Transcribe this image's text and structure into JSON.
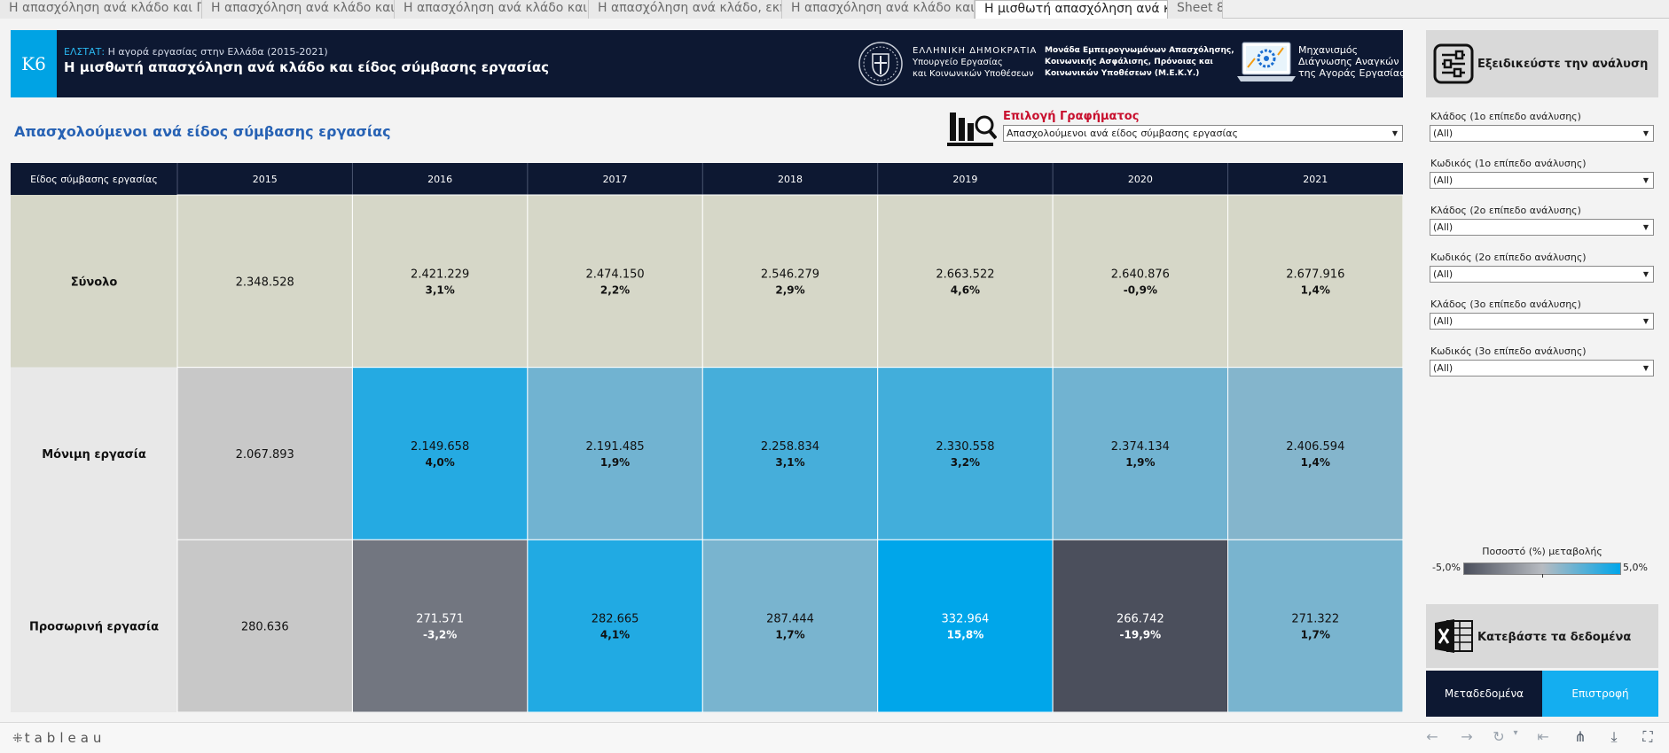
{
  "tabs": [
    {
      "label": "Η απασχόληση ανά κλάδο και Π...",
      "active": false
    },
    {
      "label": "Η απασχόληση ανά κλάδο και η...",
      "active": false
    },
    {
      "label": "Η απασχόληση ανά κλάδο και φ...",
      "active": false
    },
    {
      "label": "Η απασχόληση ανά κλάδο, εκπα...",
      "active": false
    },
    {
      "label": "Η απασχόληση ανά κλάδο και κ...",
      "active": false
    },
    {
      "label": "Η μισθωτή απασχόληση ανά κλά...",
      "active": true
    },
    {
      "label": "Sheet 8",
      "active": false
    }
  ],
  "header": {
    "badge": "Κ6",
    "source": "ΕΛΣΤΑΤ:",
    "subtitle": "Η αγορά εργασίας στην Ελλάδα (2015-2021)",
    "title": "Η μισθωτή απασχόληση ανά κλάδο και είδος σύμβασης εργασίας",
    "gov_line1": "ΕΛΛΗΝΙΚΗ ΔΗΜΟΚΡΑΤΙΑ",
    "gov_line2": "Υπουργείο Εργασίας",
    "gov_line3": "και Κοινωνικών Υποθέσεων",
    "meky_line1": "Μονάδα Εμπειρογνωμόνων Απασχόλησης,",
    "meky_line2": "Κοινωνικής Ασφάλισης, Πρόνοιας και",
    "meky_line3": "Κοινωνικών Υποθέσεων (Μ.Ε.Κ.Υ.)",
    "mech_line1": "Μηχανισμός",
    "mech_line2": "Διάγνωσης Αναγκών",
    "mech_line3": "της Αγοράς Εργασίας"
  },
  "content": {
    "title": "Απασχολούμενοι ανά είδος σύμβασης εργασίας",
    "selector_label": "Επιλογή Γραφήματος",
    "selector_value": "Απασχολούμενοι ανά είδος σύμβασης εργασίας"
  },
  "chart_data": {
    "type": "table",
    "row_header": "Είδος σύμβασης εργασίας",
    "columns": [
      "2015",
      "2016",
      "2017",
      "2018",
      "2019",
      "2020",
      "2021"
    ],
    "rows": [
      {
        "label": "Σύνολο",
        "values": [
          "2.348.528",
          "2.421.229",
          "2.474.150",
          "2.546.279",
          "2.663.522",
          "2.640.876",
          "2.677.916"
        ],
        "changes": [
          "",
          "3,1%",
          "2,2%",
          "2,9%",
          "4,6%",
          "-0,9%",
          "1,4%"
        ],
        "change_values": [
          null,
          3.1,
          2.2,
          2.9,
          4.6,
          -0.9,
          1.4
        ],
        "colored": false
      },
      {
        "label": "Μόνιμη εργασία",
        "values": [
          "2.067.893",
          "2.149.658",
          "2.191.485",
          "2.258.834",
          "2.330.558",
          "2.374.134",
          "2.406.594"
        ],
        "changes": [
          "",
          "4,0%",
          "1,9%",
          "3,1%",
          "3,2%",
          "1,9%",
          "1,4%"
        ],
        "change_values": [
          null,
          4.0,
          1.9,
          3.1,
          3.2,
          1.9,
          1.4
        ],
        "colored": true
      },
      {
        "label": "Προσωρινή εργασία",
        "values": [
          "280.636",
          "271.571",
          "282.665",
          "287.444",
          "332.964",
          "266.742",
          "271.322"
        ],
        "changes": [
          "",
          "-3,2%",
          "4,1%",
          "1,7%",
          "15,8%",
          "-19,9%",
          "1,7%"
        ],
        "change_values": [
          null,
          -3.2,
          4.1,
          1.7,
          15.8,
          -19.9,
          1.7
        ],
        "colored": true
      }
    ],
    "colors": {
      "header_bg": "#0d1832",
      "total_row_bg": "#d6d7c8",
      "label_col_bg": "#e8e8e8",
      "base_year_bg": "#c8c8c8",
      "neg_color": "#4b4f5c",
      "mid_color": "#b7bbc1",
      "pos_color": "#00a6ea"
    },
    "color_scale": {
      "min": -5.0,
      "max": 5.0
    }
  },
  "sidebar": {
    "refine_label": "Εξειδικεύστε την ανάλυση",
    "filters": [
      {
        "label": "Κλάδος (1ο επίπεδο ανάλυσης)",
        "value": "(All)"
      },
      {
        "label": "Κωδικός (1ο επίπεδο ανάλυσης)",
        "value": "(All)"
      },
      {
        "label": "Κλάδος (2ο επίπεδο ανάλυσης)",
        "value": "(All)"
      },
      {
        "label": "Κωδικός (2ο επίπεδο ανάλυσης)",
        "value": "(All)"
      },
      {
        "label": "Κλάδος (3ο επίπεδο ανάλυσης)",
        "value": "(All)"
      },
      {
        "label": "Κωδικός (3ο επίπεδο ανάλυσης)",
        "value": "(All)"
      }
    ],
    "legend_title": "Ποσοστό (%) μεταβολής",
    "legend_min": "-5,0%",
    "legend_max": "5,0%",
    "download_label": "Κατεβάστε τα δεδομένα",
    "metadata_button": "Μεταδεδομένα",
    "back_button": "Επιστροφή"
  },
  "footer": {
    "logo": "tableau",
    "toolbar": [
      "undo-icon",
      "redo-icon",
      "revert-icon",
      "revert-dropdown-icon",
      "reset-icon",
      "share-icon",
      "download-icon",
      "fullscreen-icon"
    ]
  }
}
